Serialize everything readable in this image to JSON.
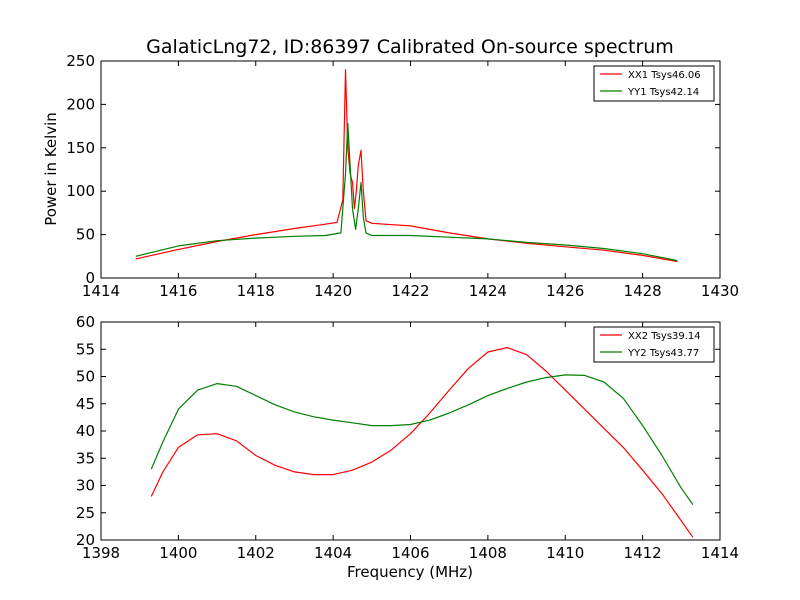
{
  "chart_data": [
    {
      "type": "line",
      "title": "GalaticLng72, ID:86397 Calibrated On-source spectrum",
      "xlabel": "",
      "ylabel": "Power in Kelvin",
      "xlim": [
        1414,
        1430
      ],
      "ylim": [
        0,
        250
      ],
      "xticks": [
        1414,
        1416,
        1418,
        1420,
        1422,
        1424,
        1426,
        1428,
        1430
      ],
      "yticks": [
        0,
        50,
        100,
        150,
        200,
        250
      ],
      "grid": false,
      "legend_position": "top-right",
      "series": [
        {
          "name": "XX1 Tsys46.06",
          "color": "#ff0000",
          "x": [
            1414.9,
            1416,
            1417,
            1418,
            1419,
            1419.8,
            1420.1,
            1420.25,
            1420.32,
            1420.38,
            1420.44,
            1420.5,
            1420.55,
            1420.6,
            1420.65,
            1420.72,
            1420.78,
            1420.85,
            1421,
            1422,
            1423,
            1424,
            1425,
            1426,
            1427,
            1428,
            1428.9
          ],
          "y": [
            22,
            33,
            42,
            50,
            57,
            62,
            64,
            90,
            240,
            150,
            120,
            110,
            80,
            100,
            130,
            147,
            100,
            66,
            63,
            60,
            52,
            45,
            40,
            36,
            32,
            26,
            19
          ]
        },
        {
          "name": "YY1 Tsys42.14",
          "color": "#008000",
          "x": [
            1414.9,
            1416,
            1417,
            1418,
            1419,
            1419.8,
            1420.2,
            1420.32,
            1420.38,
            1420.44,
            1420.5,
            1420.58,
            1420.65,
            1420.72,
            1420.78,
            1420.85,
            1421,
            1422,
            1423,
            1424,
            1425,
            1426,
            1427,
            1428,
            1428.9
          ],
          "y": [
            25,
            37,
            43,
            46,
            48,
            49,
            52,
            120,
            178,
            130,
            80,
            56,
            80,
            110,
            70,
            52,
            49,
            49,
            47,
            45,
            41,
            38,
            34,
            28,
            20
          ]
        }
      ]
    },
    {
      "type": "line",
      "title": "",
      "xlabel": "Frequency (MHz)",
      "ylabel": "",
      "xlim": [
        1398,
        1414
      ],
      "ylim": [
        20,
        60
      ],
      "xticks": [
        1398,
        1400,
        1402,
        1404,
        1406,
        1408,
        1410,
        1412,
        1414
      ],
      "yticks": [
        20,
        25,
        30,
        35,
        40,
        45,
        50,
        55,
        60
      ],
      "grid": false,
      "legend_position": "top-right",
      "series": [
        {
          "name": "XX2 Tsys39.14",
          "color": "#ff0000",
          "x": [
            1399.3,
            1399.6,
            1400,
            1400.5,
            1401,
            1401.5,
            1402,
            1402.5,
            1403,
            1403.5,
            1404,
            1404.5,
            1405,
            1405.5,
            1406,
            1406.5,
            1407,
            1407.5,
            1408,
            1408.5,
            1409,
            1409.5,
            1410,
            1410.5,
            1411,
            1411.5,
            1412,
            1412.5,
            1413,
            1413.3
          ],
          "y": [
            28,
            32.5,
            37,
            39.3,
            39.5,
            38.2,
            35.5,
            33.7,
            32.5,
            32,
            32,
            32.8,
            34.3,
            36.5,
            39.5,
            43.3,
            47.5,
            51.5,
            54.5,
            55.3,
            54,
            51,
            47.5,
            44,
            40.5,
            37,
            32.8,
            28.5,
            23.5,
            20.5
          ]
        },
        {
          "name": "YY2 Tsys43.77",
          "color": "#008000",
          "x": [
            1399.3,
            1399.6,
            1400,
            1400.5,
            1401,
            1401.5,
            1402,
            1402.5,
            1403,
            1403.5,
            1404,
            1404.5,
            1405,
            1405.5,
            1406,
            1406.5,
            1407,
            1407.5,
            1408,
            1408.5,
            1409,
            1409.5,
            1410,
            1410.5,
            1411,
            1411.5,
            1412,
            1412.5,
            1413,
            1413.3
          ],
          "y": [
            33,
            38,
            44,
            47.5,
            48.7,
            48.2,
            46.5,
            44.8,
            43.5,
            42.6,
            42,
            41.5,
            41,
            41,
            41.2,
            42,
            43.3,
            44.8,
            46.5,
            47.8,
            49,
            49.8,
            50.3,
            50.2,
            49,
            46,
            41,
            35.5,
            29.5,
            26.5
          ]
        }
      ]
    }
  ]
}
